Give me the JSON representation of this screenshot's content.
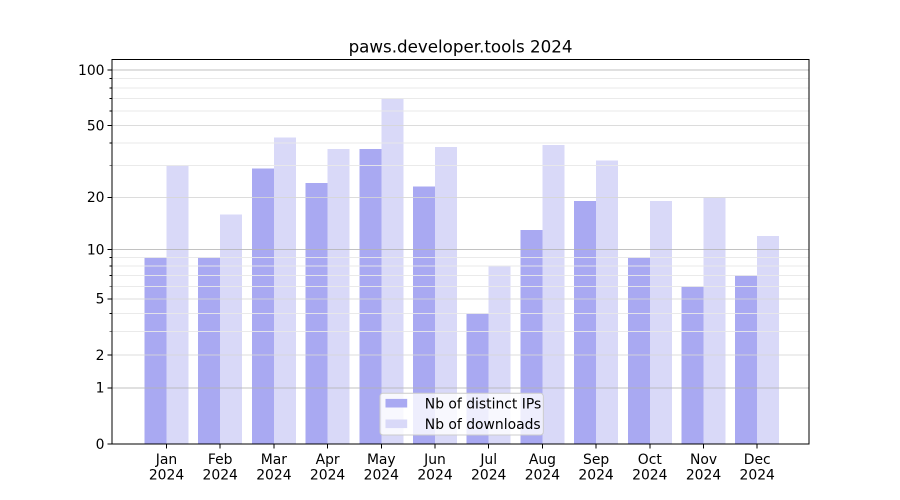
{
  "chart_data": {
    "type": "bar",
    "title": "paws.developer.tools 2024",
    "categories": [
      "Jan",
      "Feb",
      "Mar",
      "Apr",
      "May",
      "Jun",
      "Jul",
      "Aug",
      "Sep",
      "Oct",
      "Nov",
      "Dec"
    ],
    "category_sub_label": "2024",
    "series": [
      {
        "name": "Nb of distinct IPs",
        "color": "#a9a9f2",
        "values": [
          9,
          9,
          29,
          24,
          37,
          23,
          4,
          13,
          19,
          9,
          6,
          7
        ]
      },
      {
        "name": "Nb of downloads",
        "color": "#d9d9f8",
        "values": [
          30,
          16,
          43,
          37,
          70,
          38,
          8,
          39,
          32,
          19,
          20,
          12
        ]
      }
    ],
    "y_axis": {
      "scale": "log10(1+value)",
      "tick_values": [
        0,
        1,
        2,
        5,
        10,
        20,
        50,
        100
      ],
      "tick_labels": [
        "0",
        "1",
        "2",
        "5",
        "10",
        "20",
        "50",
        "100"
      ],
      "gridlines_major": [
        1,
        10,
        100
      ],
      "gridlines_mid": [
        2,
        5,
        20,
        50
      ],
      "gridlines_minor": [
        3,
        4,
        6,
        7,
        8,
        9,
        30,
        40,
        60,
        70,
        80,
        90
      ]
    },
    "ylim": [
      0,
      115
    ],
    "grid": true,
    "legend": {
      "position": "lower center",
      "entries": [
        "Nb of distinct IPs",
        "Nb of downloads"
      ]
    }
  },
  "style": {
    "background": "#ffffff",
    "axis_color": "#000000",
    "text_color": "#000000",
    "grid_major_color": "#b3b3b3",
    "grid_mid_color": "#d6d6d6",
    "grid_minor_color": "#e8e8e8",
    "legend_bg": "rgba(255,255,255,0.8)",
    "legend_border_color": "#cccccc"
  }
}
